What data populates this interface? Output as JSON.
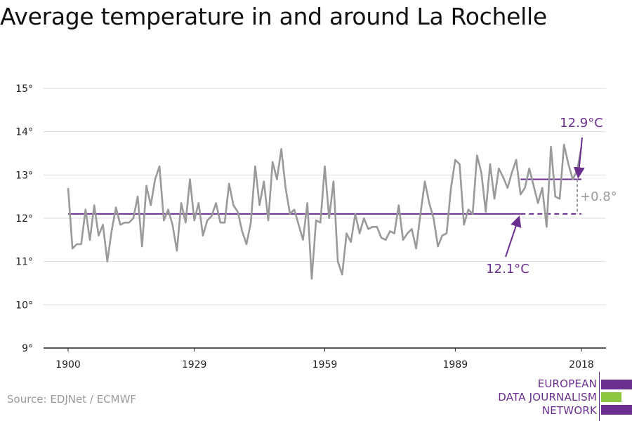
{
  "title": "Average temperature in and around La Rochelle",
  "source": "Source: EDJNet / ECMWF",
  "logo": {
    "lines": [
      "EUROPEAN",
      "DATA JOURNALISM",
      "NETWORK"
    ],
    "colors": {
      "purple": "#6a2e8f",
      "green": "#8dc63f"
    }
  },
  "colors": {
    "series": "#9a9a9a",
    "baseline": "#6a2e8f",
    "grid": "#dddddd",
    "axis": "#222222"
  },
  "chart_data": {
    "type": "line",
    "title": "Average temperature in and around La Rochelle",
    "xlabel": "",
    "ylabel": "",
    "xlim": [
      1900,
      2018
    ],
    "ylim": [
      9,
      15
    ],
    "xticks": [
      1900,
      1929,
      1959,
      1989,
      2018
    ],
    "yticks": [
      9,
      10,
      11,
      12,
      13,
      14,
      15
    ],
    "ytick_labels": [
      "9°",
      "10°",
      "11°",
      "12°",
      "13°",
      "14°",
      "15°"
    ],
    "grid": true,
    "x": [
      1900,
      1901,
      1902,
      1903,
      1904,
      1905,
      1906,
      1907,
      1908,
      1909,
      1910,
      1911,
      1912,
      1913,
      1914,
      1915,
      1916,
      1917,
      1918,
      1919,
      1920,
      1921,
      1922,
      1923,
      1924,
      1925,
      1926,
      1927,
      1928,
      1929,
      1930,
      1931,
      1932,
      1933,
      1934,
      1935,
      1936,
      1937,
      1938,
      1939,
      1940,
      1941,
      1942,
      1943,
      1944,
      1945,
      1946,
      1947,
      1948,
      1949,
      1950,
      1951,
      1952,
      1953,
      1954,
      1955,
      1956,
      1957,
      1958,
      1959,
      1960,
      1961,
      1962,
      1963,
      1964,
      1965,
      1966,
      1967,
      1968,
      1969,
      1970,
      1971,
      1972,
      1973,
      1974,
      1975,
      1976,
      1977,
      1978,
      1979,
      1980,
      1981,
      1982,
      1983,
      1984,
      1985,
      1986,
      1987,
      1988,
      1989,
      1990,
      1991,
      1992,
      1993,
      1994,
      1995,
      1996,
      1997,
      1998,
      1999,
      2000,
      2001,
      2002,
      2003,
      2004,
      2005,
      2006,
      2007,
      2008,
      2009,
      2010,
      2011,
      2012,
      2013,
      2014,
      2015,
      2016,
      2017,
      2018
    ],
    "series": [
      {
        "values": [
          12.7,
          11.3,
          11.4,
          11.4,
          12.2,
          11.5,
          12.3,
          11.6,
          11.85,
          11.0,
          11.7,
          12.25,
          11.85,
          11.9,
          11.9,
          12.0,
          12.5,
          11.35,
          12.75,
          12.3,
          12.9,
          13.2,
          11.95,
          12.2,
          11.85,
          11.25,
          12.35,
          11.9,
          12.9,
          11.95,
          12.35,
          11.6,
          11.95,
          12.05,
          12.35,
          11.9,
          11.9,
          12.8,
          12.3,
          12.15,
          11.7,
          11.4,
          11.9,
          13.2,
          12.3,
          12.85,
          11.95,
          13.3,
          12.9,
          13.6,
          12.7,
          12.1,
          12.2,
          11.85,
          11.5,
          12.35,
          10.6,
          11.95,
          11.9,
          13.2,
          12.0,
          12.85,
          11.0,
          10.7,
          11.65,
          11.45,
          12.1,
          11.65,
          12.0,
          11.75,
          11.8,
          11.8,
          11.55,
          11.5,
          11.7,
          11.65,
          12.3,
          11.5,
          11.65,
          11.75,
          11.3,
          12.1,
          12.85,
          12.35,
          12.0,
          11.35,
          11.6,
          11.65,
          12.7,
          13.35,
          13.25,
          11.85,
          12.2,
          12.1,
          13.45,
          13.05,
          12.15,
          13.25,
          12.45,
          13.15,
          12.95,
          12.7,
          13.05,
          13.35,
          12.55,
          12.7,
          13.15,
          12.75,
          12.35,
          12.7,
          11.8,
          13.65,
          12.5,
          12.45,
          13.7,
          13.25,
          12.9,
          13.1,
          13.65
        ]
      }
    ],
    "reference_lines": [
      {
        "from": 1900,
        "to": 2004,
        "value": 12.1,
        "style": "solid"
      },
      {
        "from": 2004,
        "to": 2018,
        "value": 12.1,
        "style": "dashed"
      },
      {
        "from": 2004,
        "to": 2018,
        "value": 12.9,
        "style": "solid"
      }
    ],
    "annotations": [
      {
        "text": "12.9°C",
        "target_x": 2018,
        "target_y": 12.9
      },
      {
        "text": "12.1°C",
        "target_x": 2004,
        "target_y": 12.1
      },
      {
        "text": "+0.8°",
        "x": 2018,
        "from": 12.1,
        "to": 12.9
      }
    ]
  }
}
